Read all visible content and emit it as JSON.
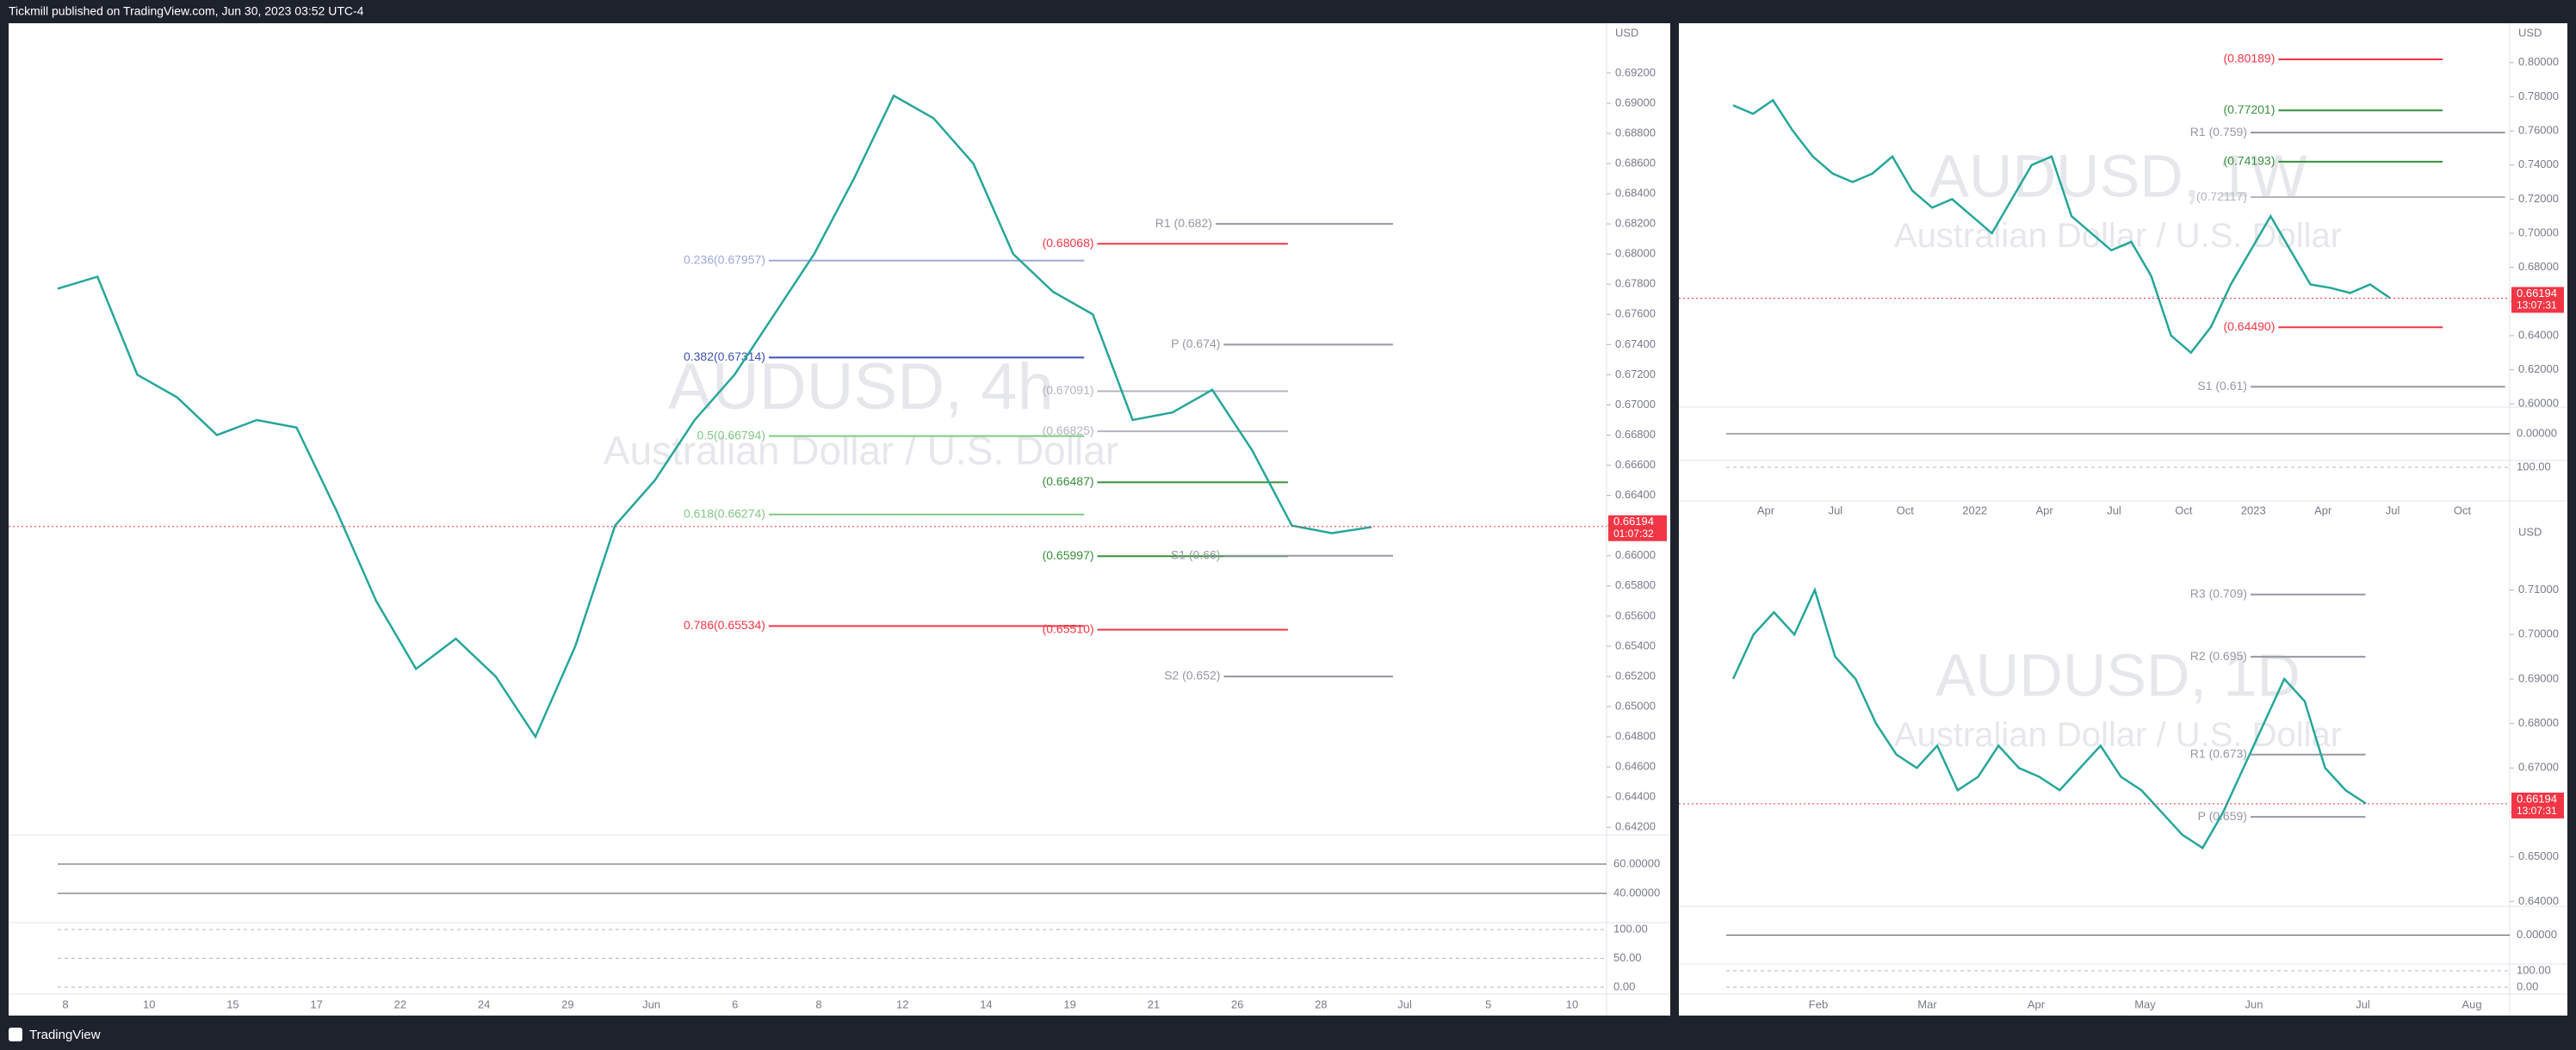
{
  "header": {
    "title": "Tickmill published on TradingView.com, Jun 30, 2023 03:52 UTC-4"
  },
  "footer": {
    "brand": "TradingView"
  },
  "panels": [
    {
      "watermark": "AUDUSD, 4h",
      "watermark_sub": "Australian Dollar / U.S. Dollar",
      "currency": "USD",
      "line_color": "#26a69a",
      "ylim": [
        0.6415,
        0.6953
      ],
      "price_ticks": [
        {
          "value": 0.642,
          "label": "0.64200"
        },
        {
          "value": 0.644,
          "label": "0.64400"
        },
        {
          "value": 0.646,
          "label": "0.64600"
        },
        {
          "value": 0.648,
          "label": "0.64800"
        },
        {
          "value": 0.65,
          "label": "0.65000"
        },
        {
          "value": 0.652,
          "label": "0.65200"
        },
        {
          "value": 0.654,
          "label": "0.65400"
        },
        {
          "value": 0.656,
          "label": "0.65600"
        },
        {
          "value": 0.658,
          "label": "0.65800"
        },
        {
          "value": 0.66,
          "label": "0.66000"
        },
        {
          "value": 0.662,
          "label": "0.66200"
        },
        {
          "value": 0.664,
          "label": "0.66400"
        },
        {
          "value": 0.666,
          "label": "0.66600"
        },
        {
          "value": 0.668,
          "label": "0.66800"
        },
        {
          "value": 0.67,
          "label": "0.67000"
        },
        {
          "value": 0.672,
          "label": "0.67200"
        },
        {
          "value": 0.674,
          "label": "0.67400"
        },
        {
          "value": 0.676,
          "label": "0.67600"
        },
        {
          "value": 0.678,
          "label": "0.67800"
        },
        {
          "value": 0.68,
          "label": "0.68000"
        },
        {
          "value": 0.682,
          "label": "0.68200"
        },
        {
          "value": 0.684,
          "label": "0.68400"
        },
        {
          "value": 0.686,
          "label": "0.68600"
        },
        {
          "value": 0.688,
          "label": "0.68800"
        },
        {
          "value": 0.69,
          "label": "0.69000"
        },
        {
          "value": 0.692,
          "label": "0.69200"
        }
      ],
      "levels": [
        {
          "label": "R1 (0.682)",
          "value": 0.682,
          "color": "#9598a1"
        },
        {
          "label": "(0.68068)",
          "value": 0.68068,
          "color": "#f23645"
        },
        {
          "label": "0.236(0.67957)",
          "value": 0.67957,
          "color": "#9fa8da"
        },
        {
          "label": "0.382(0.67314)",
          "value": 0.67314,
          "color": "#3f51b5"
        },
        {
          "label": "P (0.674)",
          "value": 0.674,
          "color": "#9598a1"
        },
        {
          "label": "(0.67091)",
          "value": 0.67091,
          "color": "#b2b5be"
        },
        {
          "label": "(0.66825)",
          "value": 0.66825,
          "color": "#b2b5be"
        },
        {
          "label": "0.5(0.66794)",
          "value": 0.66794,
          "color": "#81c784"
        },
        {
          "label": "(0.66487)",
          "value": 0.66487,
          "color": "#388e3c"
        },
        {
          "label": "0.618(0.66274)",
          "value": 0.66274,
          "color": "#81c784"
        },
        {
          "label": "(0.65997)",
          "value": 0.65997,
          "color": "#388e3c"
        },
        {
          "label": "S1 (0.66)",
          "value": 0.66,
          "color": "#9598a1"
        },
        {
          "label": "0.786(0.65534)",
          "value": 0.65534,
          "color": "#f23645"
        },
        {
          "label": "(0.65510)",
          "value": 0.6551,
          "color": "#f23645"
        },
        {
          "label": "S2 (0.652)",
          "value": 0.652,
          "color": "#9598a1"
        }
      ],
      "last_price": {
        "value": 0.66194,
        "label": "0.66194"
      },
      "countdown": "01:07:32",
      "closes": [
        0.6777,
        0.6785,
        0.672,
        0.6705,
        0.668,
        0.669,
        0.6685,
        0.663,
        0.657,
        0.6525,
        0.6545,
        0.652,
        0.648,
        0.654,
        0.662,
        0.665,
        0.669,
        0.672,
        0.676,
        0.68,
        0.685,
        0.6905,
        0.689,
        0.686,
        0.68,
        0.6775,
        0.676,
        0.669,
        0.6695,
        0.671,
        0.667,
        0.662,
        0.6615,
        0.6619
      ],
      "times": [
        "8",
        "10",
        "15",
        "17",
        "22",
        "24",
        "29",
        "Jun",
        "6",
        "8",
        "12",
        "14",
        "19",
        "21",
        "26",
        "28",
        "Jul",
        "5",
        "10"
      ],
      "indicator_ticks": [
        "60.00000",
        "40.00000"
      ],
      "oscillator_ticks": [
        "100.00",
        "50.00",
        "0.00"
      ]
    },
    {
      "watermark": "AUDUSD, 1W",
      "watermark_sub": "Australian Dollar / U.S. Dollar",
      "currency": "USD",
      "line_color": "#26a69a",
      "ylim": [
        0.5981,
        0.8231
      ],
      "price_ticks": [
        {
          "value": 0.6,
          "label": "0.60000"
        },
        {
          "value": 0.62,
          "label": "0.62000"
        },
        {
          "value": 0.64,
          "label": "0.64000"
        },
        {
          "value": 0.66,
          "label": "0.66000"
        },
        {
          "value": 0.68,
          "label": "0.68000"
        },
        {
          "value": 0.7,
          "label": "0.70000"
        },
        {
          "value": 0.72,
          "label": "0.72000"
        },
        {
          "value": 0.74,
          "label": "0.74000"
        },
        {
          "value": 0.76,
          "label": "0.76000"
        },
        {
          "value": 0.78,
          "label": "0.78000"
        },
        {
          "value": 0.8,
          "label": "0.80000"
        }
      ],
      "levels": [
        {
          "label": "(0.80189)",
          "value": 0.80189,
          "color": "#f23645"
        },
        {
          "label": "(0.77201)",
          "value": 0.77201,
          "color": "#388e3c"
        },
        {
          "label": "R1 (0.759)",
          "value": 0.759,
          "color": "#9598a1"
        },
        {
          "label": "(0.74193)",
          "value": 0.74193,
          "color": "#388e3c"
        },
        {
          "label": "(0.72117)",
          "value": 0.72117,
          "color": "#b2b5be"
        },
        {
          "label": "(0.64490)",
          "value": 0.6449,
          "color": "#f23645"
        },
        {
          "label": "S1 (0.61)",
          "value": 0.61,
          "color": "#9598a1"
        }
      ],
      "last_price": {
        "value": 0.66194,
        "label": "0.66194"
      },
      "countdown": "13:07:31",
      "closes": [
        0.775,
        0.77,
        0.778,
        0.76,
        0.745,
        0.735,
        0.73,
        0.735,
        0.745,
        0.725,
        0.715,
        0.72,
        0.71,
        0.7,
        0.72,
        0.74,
        0.745,
        0.71,
        0.7,
        0.69,
        0.695,
        0.675,
        0.64,
        0.63,
        0.645,
        0.67,
        0.69,
        0.71,
        0.69,
        0.67,
        0.668,
        0.665,
        0.67,
        0.662
      ],
      "times": [
        "Apr",
        "Jul",
        "Oct",
        "2022",
        "Apr",
        "Jul",
        "Oct",
        "2023",
        "Apr",
        "Jul",
        "Oct"
      ],
      "indicator_ticks": [
        "0.00000"
      ],
      "oscillator_ticks": [
        "100.00"
      ]
    },
    {
      "watermark": "AUDUSD, 1D",
      "watermark_sub": "Australian Dollar / U.S. Dollar",
      "currency": "USD",
      "line_color": "#26a69a",
      "ylim": [
        0.6389,
        0.7252
      ],
      "price_ticks": [
        {
          "value": 0.64,
          "label": "0.64000"
        },
        {
          "value": 0.65,
          "label": "0.65000"
        },
        {
          "value": 0.66,
          "label": "0.66000"
        },
        {
          "value": 0.67,
          "label": "0.67000"
        },
        {
          "value": 0.68,
          "label": "0.68000"
        },
        {
          "value": 0.69,
          "label": "0.69000"
        },
        {
          "value": 0.7,
          "label": "0.70000"
        },
        {
          "value": 0.71,
          "label": "0.71000"
        }
      ],
      "levels": [
        {
          "label": "R3 (0.709)",
          "value": 0.709,
          "color": "#9598a1"
        },
        {
          "label": "R2 (0.695)",
          "value": 0.695,
          "color": "#9598a1"
        },
        {
          "label": "R1 (0.673)",
          "value": 0.673,
          "color": "#9598a1"
        },
        {
          "label": "P (0.659)",
          "value": 0.659,
          "color": "#9598a1"
        }
      ],
      "last_price": {
        "value": 0.66194,
        "label": "0.66194"
      },
      "countdown": "13:07:31",
      "closes": [
        0.69,
        0.7,
        0.705,
        0.7,
        0.71,
        0.695,
        0.69,
        0.68,
        0.673,
        0.67,
        0.675,
        0.665,
        0.668,
        0.675,
        0.67,
        0.668,
        0.665,
        0.67,
        0.675,
        0.668,
        0.665,
        0.66,
        0.655,
        0.652,
        0.66,
        0.67,
        0.68,
        0.69,
        0.685,
        0.67,
        0.665,
        0.662
      ],
      "times": [
        "Feb",
        "Mar",
        "Apr",
        "May",
        "Jun",
        "Jul",
        "Aug"
      ],
      "indicator_ticks": [
        "0.00000"
      ],
      "oscillator_ticks": [
        "100.00",
        "0.00"
      ]
    }
  ]
}
